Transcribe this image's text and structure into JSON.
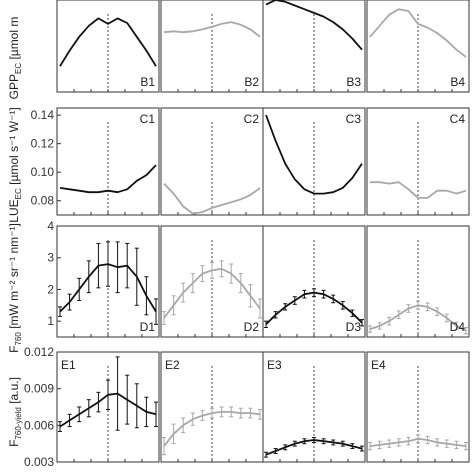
{
  "figure": {
    "row_labels": {
      "B": {
        "main": "GPP",
        "sub": "EC",
        "unit": " [µmol m"
      },
      "C": {
        "main": "LUE",
        "sub": "EC",
        "unit": " [µmol s⁻¹ W⁻¹]"
      },
      "D": {
        "main": "F",
        "sub": "760",
        "unit": " [mW m⁻² sr⁻¹ nm⁻¹]"
      },
      "E": {
        "main": "F",
        "sub": "760-yield",
        "unit": " [a.u.]"
      }
    }
  },
  "colors": {
    "black_series": "#111111",
    "gray_series": "#a8a8a8",
    "frame": "#333333"
  },
  "chart_data": [
    {
      "type": "line",
      "panel": "B1",
      "label": "B1",
      "ylim": [
        0,
        1
      ],
      "yticks": [],
      "series_color": "black",
      "x": [
        0,
        1,
        2,
        3,
        4,
        5,
        6,
        7,
        8,
        9,
        10
      ],
      "y": [
        0.28,
        0.45,
        0.6,
        0.72,
        0.8,
        0.74,
        0.8,
        0.75,
        0.6,
        0.45,
        0.28
      ]
    },
    {
      "type": "line",
      "panel": "B2",
      "label": "B2",
      "ylim": [
        0,
        1
      ],
      "yticks": [],
      "series_color": "gray",
      "x": [
        0,
        1,
        2,
        3,
        4,
        5,
        6,
        7,
        8,
        9,
        10
      ],
      "y": [
        0.65,
        0.66,
        0.65,
        0.66,
        0.68,
        0.71,
        0.74,
        0.76,
        0.73,
        0.68,
        0.6
      ]
    },
    {
      "type": "line",
      "panel": "B3",
      "label": "B3",
      "ylim": [
        0,
        1
      ],
      "yticks": [],
      "series_color": "black",
      "x": [
        0,
        1,
        2,
        3,
        4,
        5,
        6,
        7,
        8,
        9,
        10
      ],
      "y": [
        0.95,
        1.0,
        0.98,
        0.94,
        0.9,
        0.86,
        0.82,
        0.76,
        0.68,
        0.58,
        0.46
      ]
    },
    {
      "type": "line",
      "panel": "B4",
      "label": "B4",
      "ylim": [
        0,
        1
      ],
      "yticks": [],
      "series_color": "gray",
      "x": [
        0,
        1,
        2,
        3,
        4,
        5,
        6,
        7,
        8,
        9,
        10
      ],
      "y": [
        0.6,
        0.72,
        0.84,
        0.9,
        0.88,
        0.74,
        0.7,
        0.64,
        0.56,
        0.46,
        0.38
      ]
    },
    {
      "type": "line",
      "panel": "C1",
      "label": "C1",
      "ylim": [
        0.07,
        0.145
      ],
      "yticks": [
        0.08,
        0.1,
        0.12,
        0.14
      ],
      "ytick_labels": [
        "0.08",
        "0.10",
        "0.12",
        "0.14"
      ],
      "series_color": "black",
      "x": [
        0,
        1,
        2,
        3,
        4,
        5,
        6,
        7,
        8,
        9,
        10
      ],
      "y": [
        0.089,
        0.088,
        0.087,
        0.086,
        0.086,
        0.087,
        0.086,
        0.088,
        0.094,
        0.098,
        0.105
      ]
    },
    {
      "type": "line",
      "panel": "C2",
      "label": "C2",
      "ylim": [
        0.07,
        0.145
      ],
      "yticks": [],
      "series_color": "gray",
      "x": [
        0,
        1,
        2,
        3,
        4,
        5,
        6,
        7,
        8,
        9,
        10
      ],
      "y": [
        0.092,
        0.085,
        0.076,
        0.071,
        0.072,
        0.075,
        0.077,
        0.079,
        0.081,
        0.084,
        0.089
      ]
    },
    {
      "type": "line",
      "panel": "C3",
      "label": "C3",
      "ylim": [
        0.07,
        0.145
      ],
      "yticks": [],
      "series_color": "black",
      "x": [
        0,
        1,
        2,
        3,
        4,
        5,
        6,
        7,
        8,
        9,
        10
      ],
      "y": [
        0.14,
        0.122,
        0.106,
        0.095,
        0.088,
        0.085,
        0.085,
        0.086,
        0.089,
        0.096,
        0.106
      ]
    },
    {
      "type": "line",
      "panel": "C4",
      "label": "C4",
      "ylim": [
        0.07,
        0.145
      ],
      "yticks": [],
      "series_color": "gray",
      "x": [
        0,
        1,
        2,
        3,
        4,
        5,
        6,
        7,
        8,
        9,
        10
      ],
      "y": [
        0.093,
        0.093,
        0.092,
        0.093,
        0.088,
        0.082,
        0.082,
        0.087,
        0.087,
        0.085,
        0.087
      ]
    },
    {
      "type": "line",
      "panel": "D1",
      "label": "D1",
      "ylim": [
        0.5,
        4
      ],
      "yticks": [
        1,
        2,
        3,
        4
      ],
      "ytick_labels": [
        "1",
        "2",
        "3",
        "4"
      ],
      "series_color": "black",
      "x": [
        0,
        1,
        2,
        3,
        4,
        5,
        6,
        7,
        8,
        9,
        10
      ],
      "y": [
        1.3,
        1.6,
        2.0,
        2.4,
        2.75,
        2.8,
        2.7,
        2.75,
        2.4,
        1.8,
        1.3
      ],
      "err": [
        0.15,
        0.25,
        0.35,
        0.5,
        0.7,
        0.7,
        0.8,
        0.7,
        0.9,
        0.6,
        0.4
      ]
    },
    {
      "type": "line",
      "panel": "D2",
      "label": "D2",
      "ylim": [
        0.5,
        4
      ],
      "yticks": [],
      "series_color": "gray",
      "x": [
        0,
        1,
        2,
        3,
        4,
        5,
        6,
        7,
        8,
        9,
        10
      ],
      "y": [
        1.1,
        1.5,
        1.9,
        2.2,
        2.5,
        2.6,
        2.65,
        2.5,
        2.2,
        1.8,
        1.4
      ],
      "err": [
        0.2,
        0.3,
        0.3,
        0.3,
        0.25,
        0.25,
        0.25,
        0.3,
        0.3,
        0.35,
        0.3
      ]
    },
    {
      "type": "line",
      "panel": "D3",
      "label": "D3",
      "ylim": [
        0.5,
        4
      ],
      "yticks": [],
      "series_color": "black",
      "x": [
        0,
        1,
        2,
        3,
        4,
        5,
        6,
        7,
        8,
        9,
        10
      ],
      "y": [
        0.9,
        1.2,
        1.45,
        1.65,
        1.85,
        1.9,
        1.85,
        1.7,
        1.5,
        1.25,
        0.95
      ],
      "err": [
        0.1,
        0.1,
        0.1,
        0.12,
        0.12,
        0.12,
        0.12,
        0.12,
        0.12,
        0.1,
        0.1
      ]
    },
    {
      "type": "line",
      "panel": "D4",
      "label": "D4",
      "ylim": [
        0.5,
        4
      ],
      "yticks": [],
      "series_color": "gray",
      "x": [
        0,
        1,
        2,
        3,
        4,
        5,
        6,
        7,
        8,
        9,
        10
      ],
      "y": [
        0.75,
        0.85,
        1.0,
        1.2,
        1.4,
        1.5,
        1.45,
        1.3,
        1.1,
        0.85,
        0.7
      ],
      "err": [
        0.1,
        0.1,
        0.12,
        0.12,
        0.12,
        0.12,
        0.12,
        0.12,
        0.12,
        0.12,
        0.1
      ]
    },
    {
      "type": "line",
      "panel": "E1",
      "label": "E1",
      "ylim": [
        0.003,
        0.012
      ],
      "yticks": [
        0.003,
        0.006,
        0.009,
        0.012
      ],
      "ytick_labels": [
        "0.003",
        "0.006",
        "0.009",
        "0.012"
      ],
      "series_color": "black",
      "x": [
        0,
        1,
        2,
        3,
        4,
        5,
        6,
        7,
        8,
        9,
        10
      ],
      "y": [
        0.0059,
        0.0064,
        0.0069,
        0.0074,
        0.0079,
        0.0085,
        0.0086,
        0.0081,
        0.0076,
        0.0071,
        0.0069
      ],
      "err": [
        0.0004,
        0.0005,
        0.0006,
        0.0007,
        0.0008,
        0.0012,
        0.003,
        0.002,
        0.0018,
        0.0012,
        0.001
      ]
    },
    {
      "type": "line",
      "panel": "E2",
      "label": "E2",
      "ylim": [
        0.003,
        0.012
      ],
      "yticks": [],
      "series_color": "gray",
      "x": [
        0,
        1,
        2,
        3,
        4,
        5,
        6,
        7,
        8,
        9,
        10
      ],
      "y": [
        0.0043,
        0.0053,
        0.006,
        0.0065,
        0.0068,
        0.007,
        0.0071,
        0.0071,
        0.007,
        0.007,
        0.0069
      ],
      "err": [
        0.0007,
        0.0008,
        0.0006,
        0.0005,
        0.0004,
        0.0004,
        0.0004,
        0.0004,
        0.0004,
        0.0004,
        0.0004
      ]
    },
    {
      "type": "line",
      "panel": "E3",
      "label": "E3",
      "ylim": [
        0.003,
        0.012
      ],
      "yticks": [],
      "series_color": "black",
      "x": [
        0,
        1,
        2,
        3,
        4,
        5,
        6,
        7,
        8,
        9,
        10
      ],
      "y": [
        0.0036,
        0.0039,
        0.0042,
        0.0045,
        0.0047,
        0.0048,
        0.0047,
        0.0046,
        0.0045,
        0.0043,
        0.0041
      ],
      "err": [
        0.0002,
        0.0002,
        0.0002,
        0.0002,
        0.0002,
        0.0002,
        0.0002,
        0.0002,
        0.0002,
        0.0002,
        0.0002
      ]
    },
    {
      "type": "line",
      "panel": "E4",
      "label": "E4",
      "ylim": [
        0.003,
        0.012
      ],
      "yticks": [],
      "series_color": "gray",
      "x": [
        0,
        1,
        2,
        3,
        4,
        5,
        6,
        7,
        8,
        9,
        10
      ],
      "y": [
        0.0043,
        0.0044,
        0.0045,
        0.0046,
        0.0047,
        0.0049,
        0.0048,
        0.0046,
        0.0045,
        0.0044,
        0.0043
      ],
      "err": [
        0.0003,
        0.0003,
        0.0003,
        0.0003,
        0.0003,
        0.0003,
        0.0003,
        0.0003,
        0.0003,
        0.0003,
        0.0003
      ]
    }
  ]
}
